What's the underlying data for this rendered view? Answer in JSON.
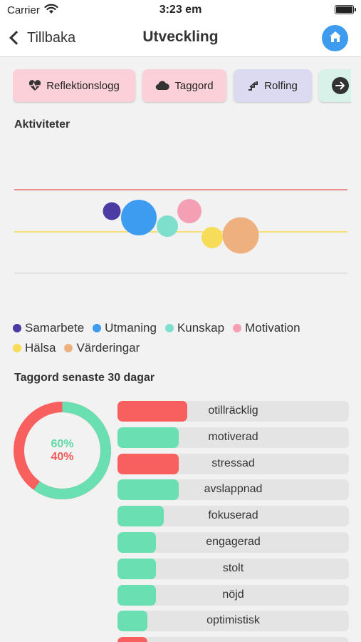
{
  "status_bar": {
    "carrier": "Carrier",
    "time": "3:23 em"
  },
  "nav": {
    "back_label": "Tillbaka",
    "title": "Utveckling"
  },
  "chips": [
    {
      "label": "Reflektionslogg",
      "icon": "heart-pulse-icon"
    },
    {
      "label": "Taggord",
      "icon": "cloud-icon"
    },
    {
      "label": "Rolfing",
      "icon": "stairs-icon"
    },
    {
      "label": "",
      "icon": "arrow-right-circle-icon"
    }
  ],
  "activities": {
    "title": "Aktiviteter",
    "reference_lines": [
      {
        "color": "#e8736b"
      },
      {
        "color": "#f2d94e"
      }
    ],
    "bubbles": [
      {
        "name": "Samarbete",
        "color": "#4b3ba3",
        "relative_size": 0.5
      },
      {
        "name": "Utmaning",
        "color": "#3d9cf0",
        "relative_size": 1.0
      },
      {
        "name": "Kunskap",
        "color": "#7ee0cc",
        "relative_size": 0.6
      },
      {
        "name": "Motivation",
        "color": "#f59fb5",
        "relative_size": 0.68
      },
      {
        "name": "Hälsa",
        "color": "#f7dc5a",
        "relative_size": 0.6
      },
      {
        "name": "Värderingar",
        "color": "#eeb07f",
        "relative_size": 1.02
      }
    ]
  },
  "taggord": {
    "title": "Taggord senaste 30 dagar",
    "positive_percent": "60%",
    "negative_percent": "40%",
    "positive_color": "#6ae0b2",
    "negative_color": "#f85f5f",
    "donut_positive_fraction": 0.6,
    "words": [
      {
        "label": "otillräcklig",
        "fill": 0.3,
        "type": "negative"
      },
      {
        "label": "motiverad",
        "fill": 0.265,
        "type": "positive"
      },
      {
        "label": "stressad",
        "fill": 0.265,
        "type": "negative"
      },
      {
        "label": "avslappnad",
        "fill": 0.265,
        "type": "positive"
      },
      {
        "label": "fokuserad",
        "fill": 0.2,
        "type": "positive"
      },
      {
        "label": "engagerad",
        "fill": 0.165,
        "type": "positive"
      },
      {
        "label": "stolt",
        "fill": 0.165,
        "type": "positive"
      },
      {
        "label": "nöjd",
        "fill": 0.165,
        "type": "positive"
      },
      {
        "label": "optimistisk",
        "fill": 0.13,
        "type": "positive"
      },
      {
        "label": "",
        "fill": 0.13,
        "type": "negative"
      }
    ]
  }
}
